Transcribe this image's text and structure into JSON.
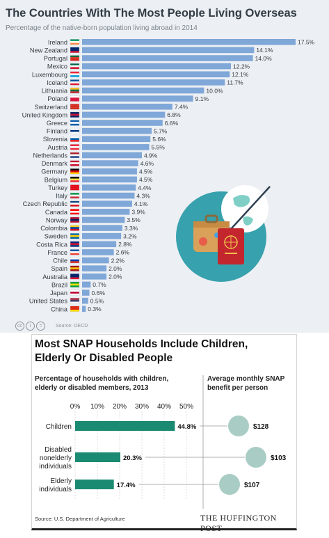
{
  "chart1": {
    "title": "The Countries With The Most People Living Overseas",
    "subtitle": "Percentage of the native-born population living abroad in 2014",
    "source": "Source: OECD",
    "license_icons": [
      "cc-icon",
      "by-icon",
      "nd-icon"
    ],
    "bar_color": "#7fa7d8",
    "background": "#eceff3"
  },
  "chart2": {
    "title": "Most SNAP Households Include Children, Elderly Or Disabled People",
    "left_subtitle": "Percentage of households with children, elderly or disabled members, 2013",
    "right_subtitle": "Average monthly SNAP benefit per person",
    "source": "Source: U.S. Department of Agriculture",
    "brand": "THE HUFFINGTON POST",
    "bar_color": "#1a8a72",
    "bubble_color": "#a9cdc4"
  },
  "chart_data": [
    {
      "type": "bar",
      "orientation": "horizontal",
      "title": "The Countries With The Most People Living Overseas",
      "subtitle": "Percentage of the native-born population living abroad in 2014",
      "categories": [
        "Ireland",
        "New Zealand",
        "Portugal",
        "Mexico",
        "Luxembourg",
        "Iceland",
        "Lithuania",
        "Poland",
        "Switzerland",
        "United Kingdom",
        "Greece",
        "Finland",
        "Slovenia",
        "Austria",
        "Netherlands",
        "Denmark",
        "Germany",
        "Belgium",
        "Turkey",
        "Italy",
        "Czech Republic",
        "Canada",
        "Norway",
        "Colombia",
        "Sweden",
        "Costa Rica",
        "France",
        "Chile",
        "Spain",
        "Australia",
        "Brazil",
        "Japan",
        "United States",
        "China"
      ],
      "values": [
        17.5,
        14.1,
        14.0,
        12.2,
        12.1,
        11.7,
        10.0,
        9.1,
        7.4,
        6.8,
        6.6,
        5.7,
        5.6,
        5.5,
        4.9,
        4.6,
        4.5,
        4.5,
        4.4,
        4.3,
        4.1,
        3.9,
        3.5,
        3.3,
        3.2,
        2.8,
        2.6,
        2.2,
        2.0,
        2.0,
        0.7,
        0.6,
        0.5,
        0.3
      ],
      "labels": [
        "17.5%",
        "14.1%",
        "14.0%",
        "12.2%",
        "12.1%",
        "11.7%",
        "10.0%",
        "9.1%",
        "7.4%",
        "6.8%",
        "6.6%",
        "5.7%",
        "5.6%",
        "5.5%",
        "4.9%",
        "4.6%",
        "4.5%",
        "4.5%",
        "4.4%",
        "4.3%",
        "4.1%",
        "3.9%",
        "3.5%",
        "3.3%",
        "3.2%",
        "2.8%",
        "2.6%",
        "2.2%",
        "2.0%",
        "2.0%",
        "0.7%",
        "0.6%",
        "0.5%",
        "0.3%"
      ],
      "xlim": [
        0,
        17.5
      ],
      "grid": false
    },
    {
      "type": "bar",
      "orientation": "horizontal",
      "title": "Most SNAP Households Include Children, Elderly Or Disabled People",
      "categories": [
        "Children",
        "Disabled nonelderly individuals",
        "Elderly individuals"
      ],
      "category_lines": [
        [
          "Children"
        ],
        [
          "Disabled",
          "nonelderly",
          "individuals"
        ],
        [
          "Elderly",
          "individuals"
        ]
      ],
      "values": [
        44.8,
        20.3,
        17.4
      ],
      "labels": [
        "44.8%",
        "20.3%",
        "17.4%"
      ],
      "xticks": [
        "0%",
        "10%",
        "20%",
        "30%",
        "40%",
        "50%"
      ],
      "xlim": [
        0,
        50
      ],
      "grid": true,
      "benefit_values": [
        128,
        103,
        107
      ],
      "benefit_labels": [
        "$128",
        "$103",
        "$107"
      ]
    }
  ]
}
